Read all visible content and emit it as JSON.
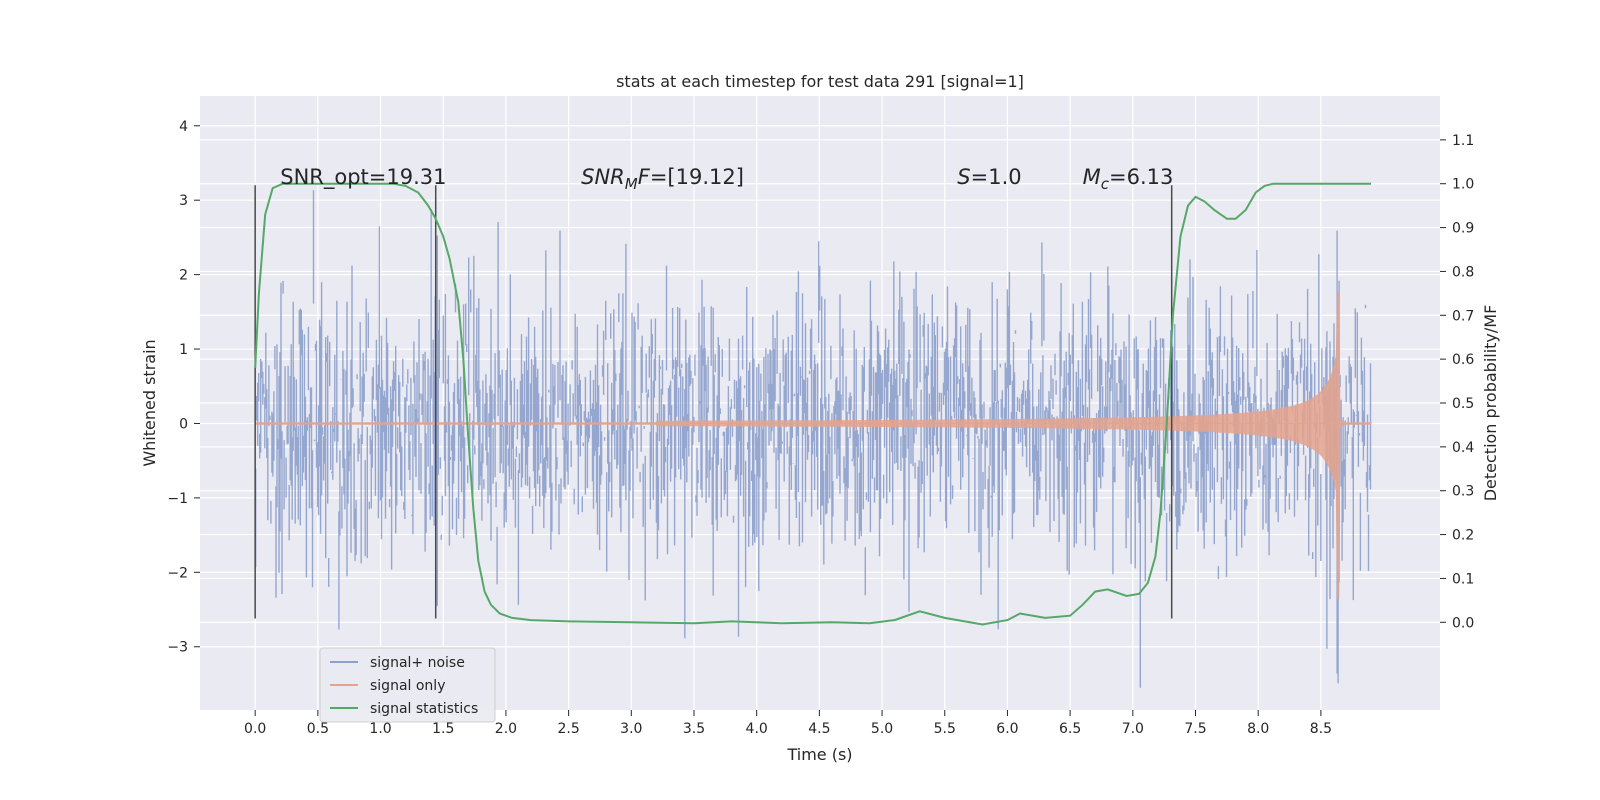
{
  "chart_data": {
    "type": "line",
    "title": "stats at each timestep for test data 291 [signal=1]",
    "xlabel": "Time (s)",
    "ylabel": "Whitened strain",
    "ylabel_right": "Detection probability/MF",
    "xlim": [
      -0.44,
      9.45
    ],
    "ylim": [
      -3.85,
      4.4
    ],
    "ylim_right": [
      -0.2,
      1.2
    ],
    "x_ticks": [
      "0.0",
      "0.5",
      "1.0",
      "1.5",
      "2.0",
      "2.5",
      "3.0",
      "3.5",
      "4.0",
      "4.5",
      "5.0",
      "5.5",
      "6.0",
      "6.5",
      "7.0",
      "7.5",
      "8.0",
      "8.5"
    ],
    "y_ticks": [
      "4",
      "3",
      "2",
      "1",
      "0",
      "−1",
      "−2",
      "−3"
    ],
    "y_ticks_right": [
      "1.1",
      "1.0",
      "0.9",
      "0.8",
      "0.7",
      "0.6",
      "0.5",
      "0.4",
      "0.3",
      "0.2",
      "0.1",
      "0.0"
    ],
    "series": [
      {
        "name": "signal+ noise",
        "color": "#8da0cb",
        "kind": "noise",
        "duration": 8.9,
        "std": 0.9,
        "t_merger": 8.65,
        "peak": 1.75
      },
      {
        "name": "signal only",
        "color": "#e5a38c",
        "kind": "chirp",
        "t_merger": 8.65,
        "peak": 1.75,
        "trough": -2.35
      },
      {
        "name": "signal statistics",
        "color": "#55a868",
        "kind": "line",
        "x": [
          0.0,
          0.03,
          0.08,
          0.14,
          0.22,
          0.35,
          0.55,
          0.8,
          1.0,
          1.1,
          1.2,
          1.3,
          1.38,
          1.44,
          1.5,
          1.55,
          1.62,
          1.66,
          1.7,
          1.74,
          1.78,
          1.83,
          1.88,
          1.95,
          2.05,
          2.2,
          2.5,
          3.0,
          3.5,
          3.8,
          4.2,
          4.6,
          4.9,
          5.1,
          5.3,
          5.5,
          5.8,
          6.0,
          6.1,
          6.3,
          6.5,
          6.6,
          6.7,
          6.8,
          6.95,
          7.05,
          7.12,
          7.18,
          7.22,
          7.27,
          7.32,
          7.38,
          7.44,
          7.5,
          7.57,
          7.65,
          7.75,
          7.82,
          7.9,
          7.98,
          8.05,
          8.12,
          8.3,
          8.6,
          8.9
        ],
        "y": [
          0.58,
          0.75,
          0.93,
          0.99,
          1.0,
          1.0,
          1.0,
          1.0,
          1.0,
          1.0,
          0.995,
          0.98,
          0.95,
          0.92,
          0.88,
          0.83,
          0.73,
          0.6,
          0.42,
          0.26,
          0.14,
          0.07,
          0.04,
          0.02,
          0.01,
          0.005,
          0.002,
          0.0,
          -0.002,
          0.002,
          -0.002,
          0.0,
          -0.002,
          0.005,
          0.025,
          0.01,
          -0.005,
          0.005,
          0.02,
          0.01,
          0.015,
          0.04,
          0.07,
          0.075,
          0.06,
          0.065,
          0.09,
          0.15,
          0.25,
          0.45,
          0.7,
          0.88,
          0.95,
          0.97,
          0.96,
          0.94,
          0.92,
          0.92,
          0.94,
          0.98,
          0.995,
          1.0,
          1.0,
          1.0,
          1.0
        ]
      }
    ],
    "vlines": [
      {
        "x": 0.0,
        "ymin": -2.62,
        "ymax": 3.2
      },
      {
        "x": 1.44,
        "ymin": -2.62,
        "ymax": 3.2
      },
      {
        "x": 7.31,
        "ymin": -2.62,
        "ymax": 3.2
      }
    ],
    "annotations": [
      {
        "id": "snr-opt",
        "x": 0.2,
        "y": 3.22,
        "text": "SNR_opt=19.31",
        "math": false
      },
      {
        "id": "snr-mf",
        "x": 2.6,
        "y": 3.22,
        "var": "SNR",
        "sub": "M",
        "var2": "F",
        "rest": "=[19.12]",
        "math": true
      },
      {
        "id": "s-stat",
        "x": 5.6,
        "y": 3.22,
        "var": "S",
        "sub": "",
        "var2": "",
        "rest": "=1.0",
        "math": true
      },
      {
        "id": "mc",
        "x": 6.6,
        "y": 3.22,
        "var": "M",
        "sub": "c",
        "var2": "",
        "rest": "=6.13",
        "math": true
      }
    ],
    "legend": {
      "position": "lower-left",
      "entries": [
        "signal+ noise",
        "signal only",
        "signal statistics"
      ]
    },
    "grid": true
  }
}
